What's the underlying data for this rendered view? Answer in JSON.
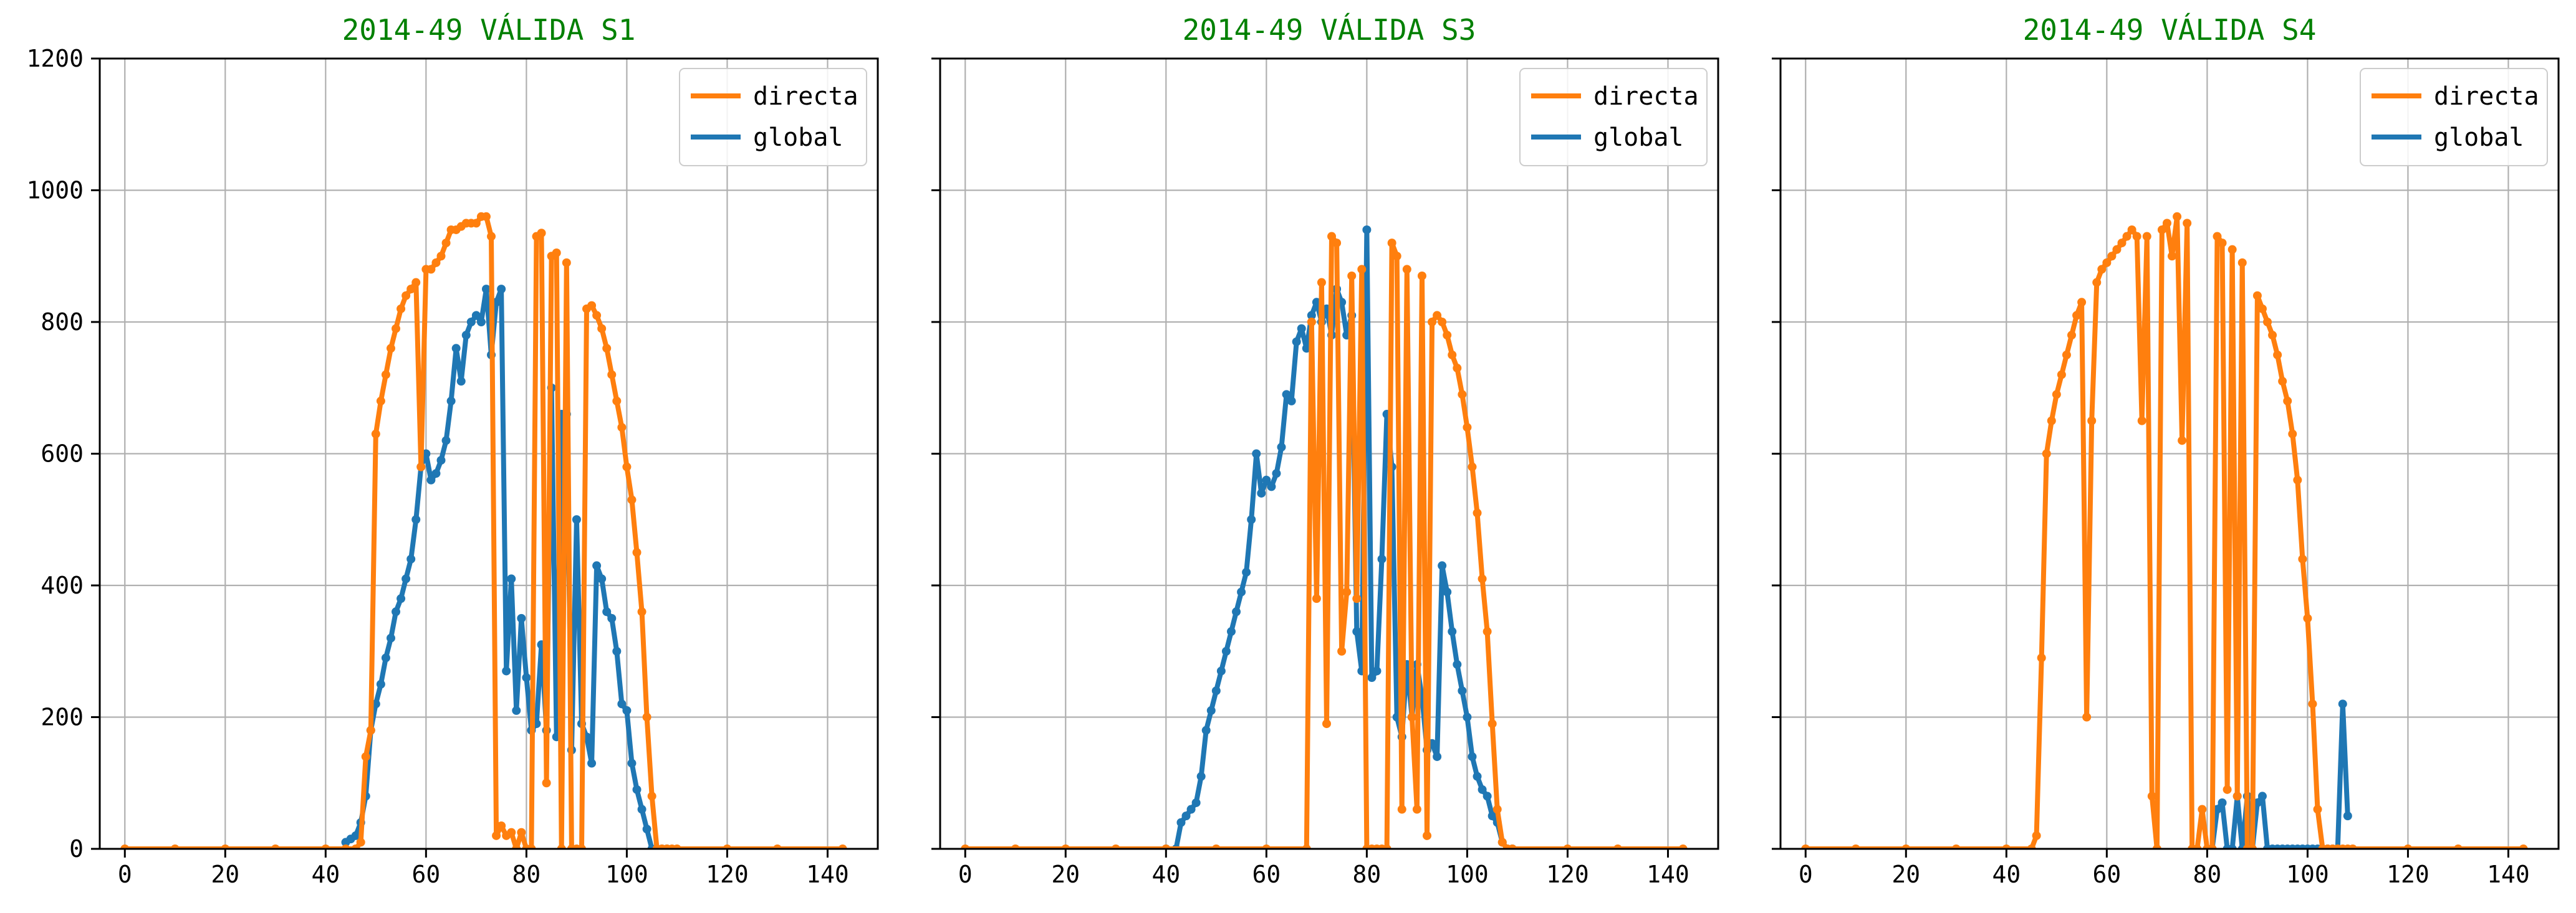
{
  "chart_data": [
    {
      "type": "line",
      "title": "2014-49 VÁLIDA S1",
      "xlabel": "",
      "ylabel": "",
      "xlim": [
        -5,
        150
      ],
      "ylim": [
        0,
        1200
      ],
      "xticks": [
        0,
        20,
        40,
        60,
        80,
        100,
        120,
        140
      ],
      "yticks": [
        0,
        200,
        400,
        600,
        800,
        1000,
        1200
      ],
      "grid": true,
      "legend": "top-right",
      "series": [
        {
          "name": "directa",
          "color": "#ff7f0e",
          "x": [
            0,
            10,
            20,
            30,
            40,
            44,
            46,
            47,
            48,
            49,
            50,
            51,
            52,
            53,
            54,
            55,
            56,
            57,
            58,
            59,
            60,
            61,
            62,
            63,
            64,
            65,
            66,
            67,
            68,
            69,
            70,
            71,
            72,
            73,
            74,
            75,
            76,
            77,
            78,
            79,
            80,
            81,
            82,
            83,
            84,
            85,
            86,
            87,
            88,
            89,
            90,
            91,
            92,
            93,
            94,
            95,
            96,
            97,
            98,
            99,
            100,
            101,
            102,
            103,
            104,
            105,
            106,
            107,
            108,
            109,
            110,
            120,
            130,
            143
          ],
          "y": [
            0,
            0,
            0,
            0,
            0,
            0,
            0,
            10,
            140,
            180,
            630,
            680,
            720,
            760,
            790,
            820,
            840,
            850,
            860,
            580,
            880,
            880,
            890,
            900,
            920,
            940,
            940,
            945,
            950,
            950,
            950,
            960,
            960,
            930,
            20,
            35,
            20,
            25,
            0,
            25,
            0,
            0,
            930,
            935,
            100,
            900,
            905,
            0,
            890,
            0,
            0,
            0,
            820,
            825,
            810,
            790,
            760,
            720,
            680,
            640,
            580,
            530,
            450,
            360,
            200,
            80,
            0,
            0,
            0,
            0,
            0,
            0,
            0,
            0
          ]
        },
        {
          "name": "global",
          "color": "#1f77b4",
          "x": [
            44,
            45,
            46,
            47,
            48,
            49,
            50,
            51,
            52,
            53,
            54,
            55,
            56,
            57,
            58,
            59,
            60,
            61,
            62,
            63,
            64,
            65,
            66,
            67,
            68,
            69,
            70,
            71,
            72,
            73,
            74,
            75,
            76,
            77,
            78,
            79,
            80,
            81,
            82,
            83,
            84,
            85,
            86,
            87,
            88,
            89,
            90,
            91,
            92,
            93,
            94,
            95,
            96,
            97,
            98,
            99,
            100,
            101,
            102,
            103,
            104,
            105,
            106,
            107,
            108
          ],
          "y": [
            10,
            15,
            20,
            40,
            80,
            180,
            220,
            250,
            290,
            320,
            360,
            380,
            410,
            440,
            500,
            580,
            600,
            560,
            570,
            590,
            620,
            680,
            760,
            710,
            780,
            800,
            810,
            800,
            850,
            750,
            830,
            850,
            270,
            410,
            210,
            350,
            260,
            180,
            190,
            310,
            180,
            700,
            170,
            660,
            660,
            150,
            500,
            190,
            170,
            130,
            430,
            410,
            360,
            350,
            300,
            220,
            210,
            130,
            90,
            60,
            30,
            0,
            0,
            0,
            0
          ]
        }
      ]
    },
    {
      "type": "line",
      "title": "2014-49 VÁLIDA S3",
      "xlabel": "",
      "ylabel": "",
      "xlim": [
        -5,
        150
      ],
      "ylim": [
        0,
        1200
      ],
      "xticks": [
        0,
        20,
        40,
        60,
        80,
        100,
        120,
        140
      ],
      "yticks": [
        0,
        200,
        400,
        600,
        800,
        1000,
        1200
      ],
      "grid": true,
      "legend": "top-right",
      "series": [
        {
          "name": "directa",
          "color": "#ff7f0e",
          "x": [
            0,
            10,
            20,
            30,
            40,
            50,
            60,
            68,
            69,
            70,
            71,
            72,
            73,
            74,
            75,
            76,
            77,
            78,
            79,
            80,
            81,
            82,
            83,
            84,
            85,
            86,
            87,
            88,
            89,
            90,
            91,
            92,
            93,
            94,
            95,
            96,
            97,
            98,
            99,
            100,
            101,
            102,
            103,
            104,
            105,
            106,
            107,
            108,
            109,
            120,
            130,
            143
          ],
          "y": [
            0,
            0,
            0,
            0,
            0,
            0,
            0,
            0,
            800,
            380,
            860,
            190,
            930,
            920,
            300,
            390,
            870,
            380,
            880,
            0,
            0,
            0,
            0,
            0,
            920,
            900,
            60,
            880,
            200,
            60,
            870,
            20,
            800,
            810,
            800,
            780,
            750,
            730,
            690,
            640,
            580,
            510,
            410,
            330,
            190,
            60,
            10,
            0,
            0,
            0,
            0,
            0
          ]
        },
        {
          "name": "global",
          "color": "#1f77b4",
          "x": [
            40,
            42,
            43,
            44,
            45,
            46,
            47,
            48,
            49,
            50,
            51,
            52,
            53,
            54,
            55,
            56,
            57,
            58,
            59,
            60,
            61,
            62,
            63,
            64,
            65,
            66,
            67,
            68,
            69,
            70,
            71,
            72,
            73,
            74,
            75,
            76,
            77,
            78,
            79,
            80,
            81,
            82,
            83,
            84,
            85,
            86,
            87,
            88,
            89,
            90,
            91,
            92,
            93,
            94,
            95,
            96,
            97,
            98,
            99,
            100,
            101,
            102,
            103,
            104,
            105,
            106,
            107,
            108,
            109
          ],
          "y": [
            0,
            0,
            40,
            50,
            60,
            70,
            110,
            180,
            210,
            240,
            270,
            300,
            330,
            360,
            390,
            420,
            500,
            600,
            540,
            560,
            550,
            570,
            610,
            690,
            680,
            770,
            790,
            760,
            810,
            830,
            800,
            820,
            780,
            850,
            830,
            780,
            810,
            330,
            270,
            940,
            260,
            270,
            440,
            660,
            580,
            200,
            170,
            280,
            200,
            280,
            230,
            150,
            160,
            140,
            430,
            390,
            330,
            280,
            240,
            200,
            140,
            110,
            90,
            80,
            50,
            40,
            10,
            0,
            0
          ]
        }
      ]
    },
    {
      "type": "line",
      "title": "2014-49 VÁLIDA S4",
      "xlabel": "",
      "ylabel": "",
      "xlim": [
        -5,
        150
      ],
      "ylim": [
        0,
        1200
      ],
      "xticks": [
        0,
        20,
        40,
        60,
        80,
        100,
        120,
        140
      ],
      "yticks": [
        0,
        200,
        400,
        600,
        800,
        1000,
        1200
      ],
      "grid": true,
      "legend": "top-right",
      "series": [
        {
          "name": "directa",
          "color": "#ff7f0e",
          "x": [
            0,
            10,
            20,
            30,
            40,
            45,
            46,
            47,
            48,
            49,
            50,
            51,
            52,
            53,
            54,
            55,
            56,
            57,
            58,
            59,
            60,
            61,
            62,
            63,
            64,
            65,
            66,
            67,
            68,
            69,
            70,
            71,
            72,
            73,
            74,
            75,
            76,
            77,
            78,
            79,
            80,
            81,
            82,
            83,
            84,
            85,
            86,
            87,
            88,
            89,
            90,
            91,
            92,
            93,
            94,
            95,
            96,
            97,
            98,
            99,
            100,
            101,
            102,
            103,
            104,
            105,
            106,
            107,
            108,
            109,
            120,
            130,
            143
          ],
          "y": [
            0,
            0,
            0,
            0,
            0,
            0,
            20,
            290,
            600,
            650,
            690,
            720,
            750,
            780,
            810,
            830,
            200,
            650,
            860,
            880,
            890,
            900,
            910,
            920,
            930,
            940,
            930,
            650,
            930,
            80,
            0,
            940,
            950,
            900,
            960,
            620,
            950,
            0,
            0,
            60,
            0,
            0,
            930,
            920,
            90,
            910,
            80,
            890,
            0,
            0,
            840,
            820,
            800,
            780,
            750,
            710,
            680,
            630,
            560,
            440,
            350,
            220,
            60,
            0,
            0,
            0,
            0,
            0,
            0,
            0,
            0,
            0,
            0
          ]
        },
        {
          "name": "global",
          "color": "#1f77b4",
          "x": [
            80,
            81,
            82,
            83,
            84,
            85,
            86,
            87,
            88,
            89,
            90,
            91,
            92,
            93,
            94,
            95,
            96,
            97,
            98,
            99,
            100,
            101,
            102,
            103,
            104,
            105,
            106,
            107,
            108
          ],
          "y": [
            0,
            0,
            60,
            70,
            0,
            0,
            80,
            0,
            80,
            0,
            70,
            80,
            0,
            0,
            0,
            0,
            0,
            0,
            0,
            0,
            0,
            0,
            0,
            0,
            0,
            0,
            0,
            220,
            50
          ]
        }
      ]
    }
  ]
}
